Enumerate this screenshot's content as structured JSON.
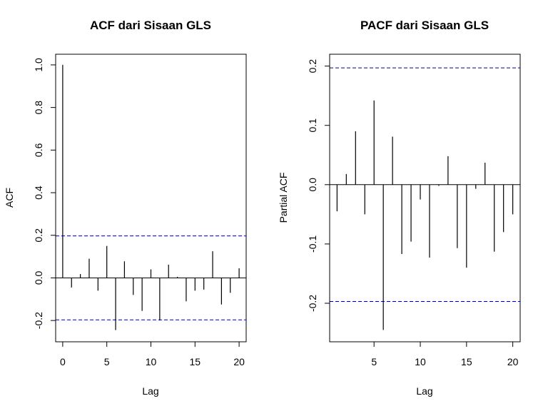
{
  "chart_data": [
    {
      "type": "bar",
      "title": "ACF dari Sisaan GLS",
      "xlabel": "Lag",
      "ylabel": "ACF",
      "xlim": [
        -0.8,
        20.8
      ],
      "ylim": [
        -0.3,
        1.05
      ],
      "xticks": [
        "0",
        "5",
        "10",
        "15",
        "20"
      ],
      "yticks": [
        "-0.2",
        "0.0",
        "0.2",
        "0.4",
        "0.6",
        "0.8",
        "1.0"
      ],
      "confidence_band": [
        0.197,
        -0.197
      ],
      "lags": [
        0,
        1,
        2,
        3,
        4,
        5,
        6,
        7,
        8,
        9,
        10,
        11,
        12,
        13,
        14,
        15,
        16,
        17,
        18,
        19,
        20
      ],
      "values": [
        1.0,
        -0.045,
        0.018,
        0.09,
        -0.06,
        0.15,
        -0.245,
        0.078,
        -0.08,
        -0.155,
        0.04,
        -0.2,
        0.062,
        0.005,
        -0.11,
        -0.06,
        -0.055,
        0.125,
        -0.125,
        -0.07,
        0.045
      ]
    },
    {
      "type": "bar",
      "title": "PACF dari Sisaan GLS",
      "xlabel": "Lag",
      "ylabel": "Partial ACF",
      "xlim": [
        0.2,
        20.8
      ],
      "ylim": [
        -0.265,
        0.22
      ],
      "xticks": [
        "5",
        "10",
        "15",
        "20"
      ],
      "yticks": [
        "-0.2",
        "-0.1",
        "0.0",
        "0.1",
        "0.2"
      ],
      "confidence_band": [
        0.197,
        -0.197
      ],
      "lags": [
        1,
        2,
        3,
        4,
        5,
        6,
        7,
        8,
        9,
        10,
        11,
        12,
        13,
        14,
        15,
        16,
        17,
        18,
        19,
        20
      ],
      "values": [
        -0.045,
        0.018,
        0.09,
        -0.05,
        0.142,
        -0.245,
        0.081,
        -0.117,
        -0.096,
        -0.025,
        -0.123,
        -0.002,
        0.048,
        -0.107,
        -0.14,
        -0.007,
        0.037,
        -0.113,
        -0.08,
        -0.05
      ]
    }
  ]
}
